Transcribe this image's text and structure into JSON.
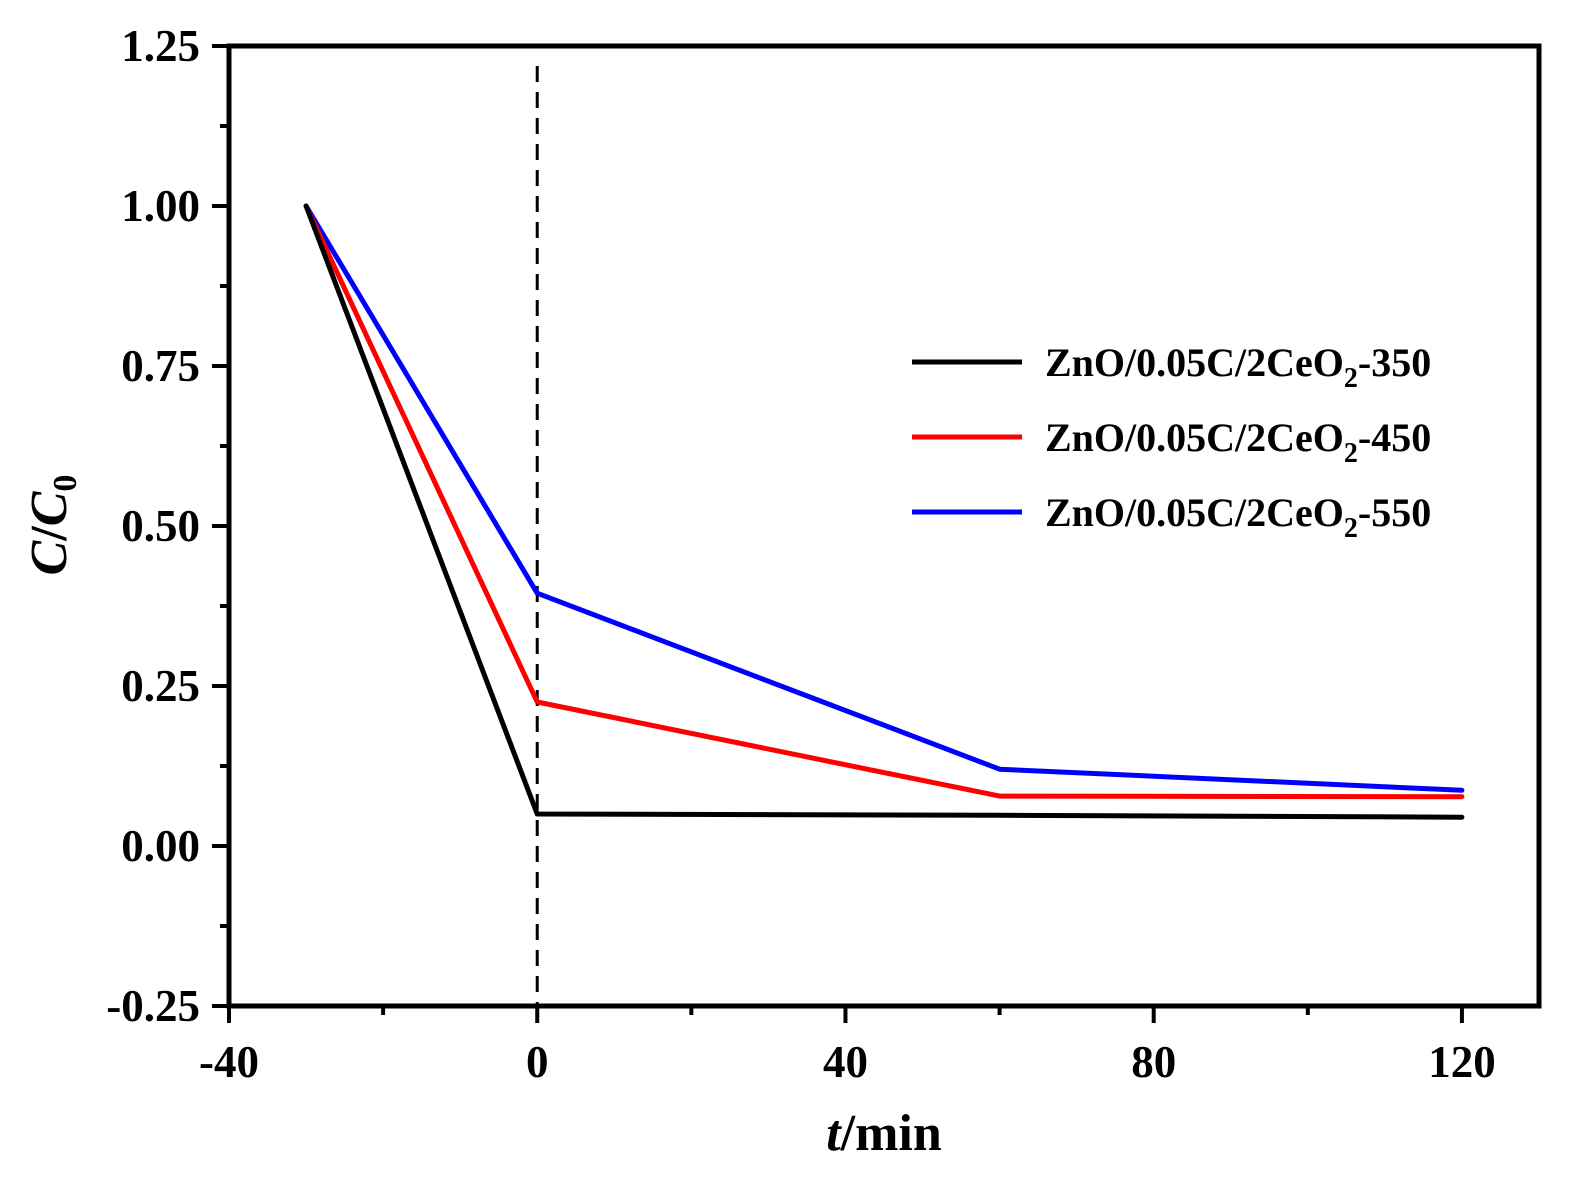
{
  "chart_data": {
    "type": "line",
    "title": "",
    "xlabel": {
      "italic": "t",
      "rest": "/min"
    },
    "ylabel": {
      "c": "C",
      "slash": "/",
      "c0": "C",
      "sub": "0"
    },
    "xlim": [
      -40,
      130
    ],
    "ylim": [
      -0.25,
      1.25
    ],
    "xticks": [
      -40,
      0,
      40,
      80,
      120
    ],
    "xtick_labels": [
      "-40",
      "0",
      "40",
      "80",
      "120"
    ],
    "yticks": [
      -0.25,
      0,
      0.25,
      0.5,
      0.75,
      1.0,
      1.25
    ],
    "ytick_labels": [
      "-0.25",
      "0.00",
      "0.25",
      "0.50",
      "0.75",
      "1.00",
      "1.25"
    ],
    "vline": {
      "x": 0,
      "style": "dashed"
    },
    "legend_position": "right",
    "x": [
      -30,
      0,
      60,
      120
    ],
    "series": [
      {
        "name": "ZnO/0.05C/2CeO2-350",
        "label_pre": "ZnO/0.05C/2CeO",
        "label_sub": "2",
        "label_post": "-350",
        "color": "#000000",
        "values": [
          1.0,
          0.05,
          0.048,
          0.045
        ]
      },
      {
        "name": "ZnO/0.05C/2CeO2-450",
        "label_pre": "ZnO/0.05C/2CeO",
        "label_sub": "2",
        "label_post": "-450",
        "color": "#ff0000",
        "values": [
          1.0,
          0.225,
          0.078,
          0.077
        ]
      },
      {
        "name": "ZnO/0.05C/2CeO2-550",
        "label_pre": "ZnO/0.05C/2CeO",
        "label_sub": "2",
        "label_post": "-550",
        "color": "#0000ff",
        "values": [
          1.0,
          0.395,
          0.12,
          0.087
        ]
      }
    ]
  }
}
